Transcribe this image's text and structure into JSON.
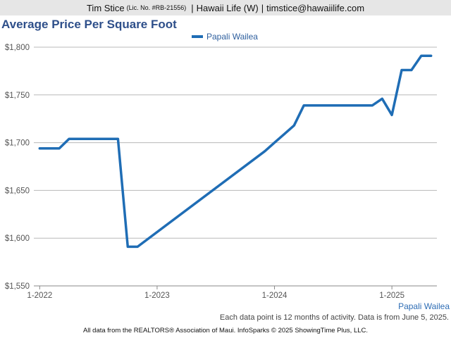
{
  "header": {
    "name": "Tim Stice",
    "license": "(Lic. No. #RB-21556)",
    "sep1": "|",
    "brokerage": "Hawaii Life (W)",
    "sep2": "|",
    "email": "timstice@hawaiilife.com"
  },
  "chart_data": {
    "type": "line",
    "title": "Average Price Per Square Foot",
    "xlabel": "",
    "ylabel": "",
    "ylim": [
      1550,
      1800
    ],
    "yticks": [
      1550,
      1600,
      1650,
      1700,
      1750,
      1800
    ],
    "ytick_labels": [
      "$1,550",
      "$1,600",
      "$1,650",
      "$1,700",
      "$1,750",
      "$1,800"
    ],
    "xlim": [
      "2022-01",
      "2025-05"
    ],
    "xticks": [
      "2022-01",
      "2023-01",
      "2024-01",
      "2025-01"
    ],
    "xtick_labels": [
      "1-2022",
      "1-2023",
      "1-2024",
      "1-2025"
    ],
    "grid": "horizontal",
    "legend_position": "top",
    "series": [
      {
        "name": "Papali Wailea",
        "color": "#1f6db5",
        "x": [
          "2022-01",
          "2022-02",
          "2022-03",
          "2022-04",
          "2022-05",
          "2022-06",
          "2022-07",
          "2022-08",
          "2022-09",
          "2022-10",
          "2022-11",
          "2023-12",
          "2024-01",
          "2024-02",
          "2024-03",
          "2024-04",
          "2024-05",
          "2024-06",
          "2024-07",
          "2024-08",
          "2024-09",
          "2024-10",
          "2024-11",
          "2024-12",
          "2025-01",
          "2025-02",
          "2025-03",
          "2025-04",
          "2025-05"
        ],
        "values": [
          1694,
          1694,
          1694,
          1704,
          1704,
          1704,
          1704,
          1704,
          1704,
          1591,
          1591,
          1691,
          1700,
          1709,
          1718,
          1739,
          1739,
          1739,
          1739,
          1739,
          1739,
          1739,
          1739,
          1746,
          1729,
          1776,
          1776,
          1791,
          1791
        ]
      }
    ]
  },
  "series_label": "Papali Wailea",
  "note": "Each data point is 12 months of activity. Data is from June 5, 2025.",
  "footer": "All data from the REALTORS® Association of Maui. InfoSparks © 2025 ShowingTime Plus, LLC."
}
